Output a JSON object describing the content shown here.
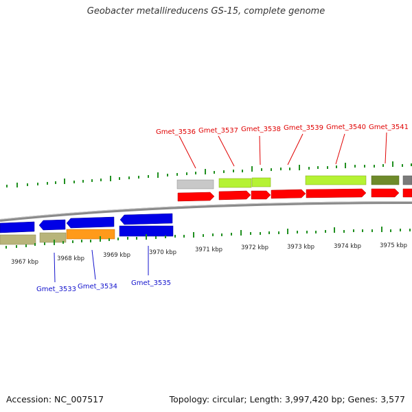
{
  "title": "Geobacter metallireducens GS-15, complete genome",
  "footer": {
    "accession": "Accession: NC_007517",
    "summary": "Topology: circular; Length: 3,997,420 bp; Genes: 3,577"
  },
  "colors": {
    "forward_gene": "#ff0000",
    "reverse_gene": "#0000e6",
    "label_forward": "#e00000",
    "label_reverse": "#1010cc",
    "backbone": "#8a8a8a",
    "ticks": "#1f8f1f"
  },
  "scale": {
    "unit": "kbp",
    "labels": [
      "3967 kbp",
      "3968 kbp",
      "3969 kbp",
      "3970 kbp",
      "3971 kbp",
      "3972 kbp",
      "3973 kbp",
      "3974 kbp",
      "3975 kbp"
    ]
  },
  "forward_strand_labels": [
    "Gmet_3536",
    "Gmet_3537",
    "Gmet_3538",
    "Gmet_3539",
    "Gmet_3540",
    "Gmet_3541"
  ],
  "reverse_strand_labels": [
    "Gmet_3533",
    "Gmet_3534",
    "Gmet_3535"
  ]
}
